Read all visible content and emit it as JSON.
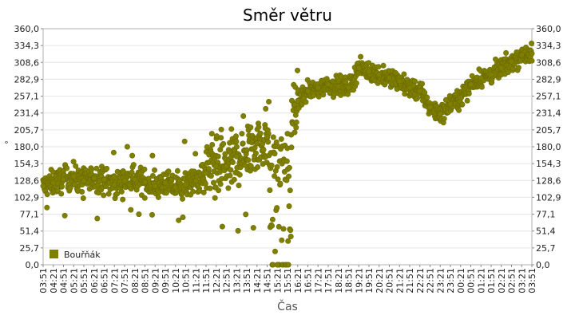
{
  "chart_data": {
    "type": "scatter",
    "title": "Směr větru",
    "xlabel": "Čas",
    "ylabel": "°",
    "ylim": [
      0,
      360
    ],
    "grid": true,
    "legend_position": "bottom-left",
    "color": "#808000",
    "y_ticks": [
      "0,0",
      "25,7",
      "51,4",
      "77,1",
      "102,9",
      "128,6",
      "154,3",
      "180,0",
      "205,7",
      "231,4",
      "257,1",
      "282,9",
      "308,6",
      "334,3",
      "360,0"
    ],
    "x_ticks": [
      "03:51",
      "04:21",
      "04:51",
      "05:21",
      "05:51",
      "06:21",
      "06:51",
      "07:21",
      "07:51",
      "08:21",
      "08:51",
      "09:21",
      "09:51",
      "10:21",
      "10:51",
      "11:21",
      "11:51",
      "12:21",
      "12:51",
      "13:21",
      "13:51",
      "14:21",
      "14:51",
      "15:21",
      "15:51",
      "16:21",
      "16:51",
      "17:21",
      "17:51",
      "18:21",
      "18:51",
      "19:21",
      "19:51",
      "20:21",
      "20:51",
      "21:21",
      "21:51",
      "22:21",
      "22:51",
      "23:21",
      "23:51",
      "00:21",
      "00:51",
      "01:21",
      "01:51",
      "02:21",
      "02:51",
      "03:21",
      "03:51"
    ],
    "series": [
      {
        "name": "Bouřňák",
        "x": [
          "03:51",
          "04:21",
          "04:51",
          "05:21",
          "05:51",
          "06:21",
          "06:51",
          "07:21",
          "07:51",
          "08:21",
          "08:51",
          "09:21",
          "09:51",
          "10:21",
          "10:51",
          "11:21",
          "11:51",
          "12:21",
          "12:51",
          "13:21",
          "13:51",
          "14:21",
          "14:51",
          "15:21",
          "15:51",
          "16:21",
          "16:51",
          "17:21",
          "17:51",
          "18:21",
          "18:51",
          "19:21",
          "19:51",
          "20:21",
          "20:51",
          "21:21",
          "21:51",
          "22:21",
          "22:51",
          "23:21",
          "23:51",
          "00:21",
          "00:51",
          "01:21",
          "01:51",
          "02:21",
          "02:51",
          "03:21",
          "03:51"
        ],
        "values": [
          120,
          125,
          130,
          135,
          128,
          132,
          130,
          122,
          128,
          130,
          126,
          120,
          125,
          118,
          122,
          128,
          140,
          150,
          150,
          165,
          175,
          185,
          195,
          0,
          200,
          250,
          265,
          270,
          275,
          272,
          270,
          300,
          295,
          290,
          285,
          280,
          270,
          265,
          240,
          230,
          245,
          255,
          275,
          285,
          290,
          300,
          310,
          320,
          322
        ]
      }
    ]
  }
}
